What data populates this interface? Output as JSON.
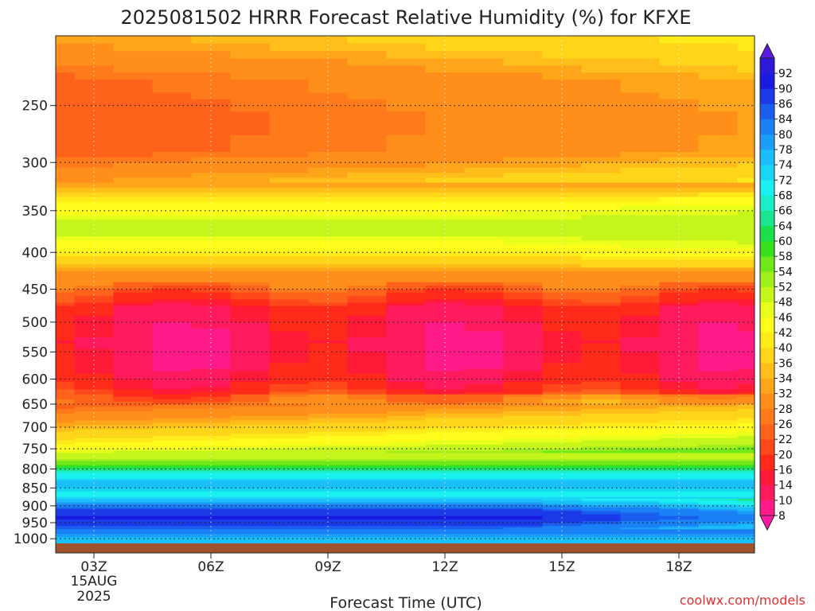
{
  "chart_data": {
    "type": "heatmap",
    "title": "2025081502 HRRR Forecast Relative Humidity (%) for KFXE",
    "xlabel": "Forecast Time (UTC)",
    "ylabel": "",
    "x_ticks": [
      "03Z",
      "06Z",
      "09Z",
      "12Z",
      "15Z",
      "18Z"
    ],
    "x_date_label": [
      "15AUG",
      "2025"
    ],
    "x_hours": [
      2,
      3,
      4,
      5,
      6,
      7,
      8,
      9,
      10,
      11,
      12,
      13,
      14,
      15,
      16,
      17,
      18,
      19,
      20
    ],
    "y_ticks": [
      250,
      300,
      350,
      400,
      450,
      500,
      550,
      600,
      650,
      700,
      750,
      800,
      850,
      900,
      950,
      1000
    ],
    "y_range_hPa": [
      200,
      1015
    ],
    "y_scale": "log-pressure",
    "grid": true,
    "legend": "right colorbar",
    "colorbar_levels": [
      8,
      10,
      14,
      16,
      20,
      22,
      26,
      28,
      32,
      34,
      36,
      40,
      42,
      46,
      48,
      52,
      54,
      58,
      60,
      64,
      66,
      68,
      72,
      74,
      78,
      80,
      84,
      86,
      90,
      92
    ],
    "colorbar_colors": [
      "#ff1aa3",
      "#ff1a8a",
      "#ff1a5e",
      "#ff1a38",
      "#ff2a1a",
      "#ff471a",
      "#ff621a",
      "#ff7a1a",
      "#ff8f1a",
      "#ffa51a",
      "#ffbe1a",
      "#ffd51a",
      "#ffea1a",
      "#fffb1a",
      "#e7ff1a",
      "#c5f51a",
      "#a0ee1a",
      "#6fe81a",
      "#36e01a",
      "#1ae050",
      "#1ae68f",
      "#1aeec6",
      "#1af0f0",
      "#1ad6f5",
      "#1abef8",
      "#1a9ef8",
      "#1a80f5",
      "#1a5ef0",
      "#1a3ae8",
      "#1a1ae0",
      "#2d1ad8",
      "#5a1ae0"
    ],
    "profiles": [
      {
        "p": 200,
        "rh": 33
      },
      {
        "p": 230,
        "rh": 25
      },
      {
        "p": 260,
        "rh": 23
      },
      {
        "p": 290,
        "rh": 24
      },
      {
        "p": 320,
        "rh": 32
      },
      {
        "p": 345,
        "rh": 44
      },
      {
        "p": 370,
        "rh": 50
      },
      {
        "p": 395,
        "rh": 44
      },
      {
        "p": 420,
        "rh": 34
      },
      {
        "p": 450,
        "rh": 24
      },
      {
        "p": 480,
        "rh": 15
      },
      {
        "p": 530,
        "rh": 12
      },
      {
        "p": 580,
        "rh": 13
      },
      {
        "p": 620,
        "rh": 18
      },
      {
        "p": 660,
        "rh": 26
      },
      {
        "p": 700,
        "rh": 34
      },
      {
        "p": 740,
        "rh": 42
      },
      {
        "p": 780,
        "rh": 54
      },
      {
        "p": 810,
        "rh": 68
      },
      {
        "p": 840,
        "rh": 76
      },
      {
        "p": 870,
        "rh": 70
      },
      {
        "p": 890,
        "rh": 78
      },
      {
        "p": 915,
        "rh": 88
      },
      {
        "p": 935,
        "rh": 91
      },
      {
        "p": 960,
        "rh": 86
      },
      {
        "p": 985,
        "rh": 80
      },
      {
        "p": 1015,
        "rh": 74
      }
    ]
  },
  "credit": "coolwx.com/models"
}
